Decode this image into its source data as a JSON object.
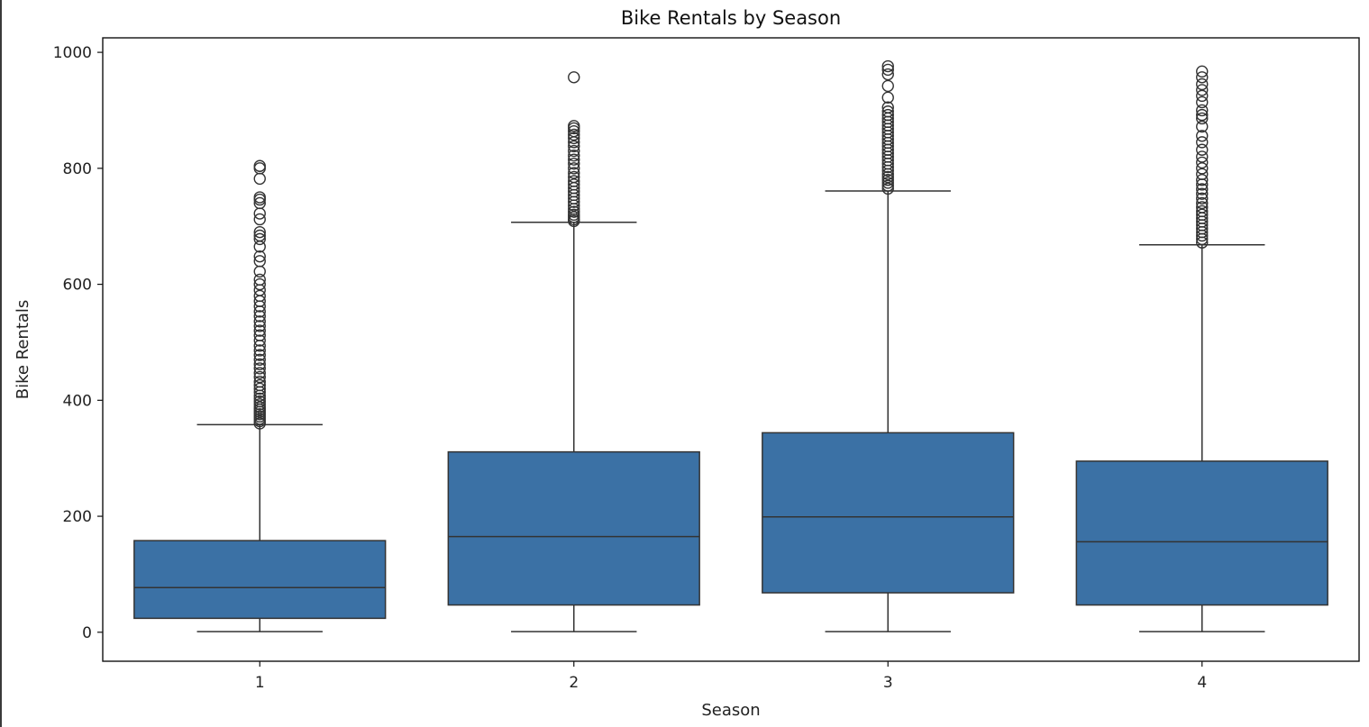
{
  "chart_data": {
    "type": "box",
    "title": "Bike Rentals by Season",
    "xlabel": "Season",
    "ylabel": "Bike Rentals",
    "categories": [
      "1",
      "2",
      "3",
      "4"
    ],
    "ylim": [
      -50,
      1025
    ],
    "yticks": [
      0,
      200,
      400,
      600,
      800,
      1000
    ],
    "grid": false,
    "box_color": "#3b71a5",
    "line_color": "#333333",
    "boxes": [
      {
        "category": "1",
        "whisker_low": 1,
        "q1": 24,
        "median": 77,
        "q3": 158,
        "whisker_high": 358,
        "outliers": [
          360,
          364,
          368,
          372,
          376,
          380,
          384,
          388,
          393,
          398,
          403,
          408,
          414,
          420,
          426,
          432,
          440,
          447,
          455,
          462,
          470,
          478,
          486,
          494,
          503,
          512,
          520,
          528,
          536,
          545,
          553,
          562,
          571,
          580,
          590,
          600,
          608,
          622,
          640,
          648,
          665,
          678,
          684,
          690,
          712,
          722,
          740,
          746,
          750,
          782,
          800,
          804
        ]
      },
      {
        "category": "2",
        "whisker_low": 1,
        "q1": 47,
        "median": 165,
        "q3": 311,
        "whisker_high": 707,
        "outliers": [
          709,
          712,
          716,
          720,
          725,
          730,
          736,
          742,
          748,
          754,
          760,
          766,
          772,
          778,
          785,
          792,
          800,
          808,
          815,
          822,
          830,
          838,
          845,
          852,
          858,
          864,
          869,
          873,
          957
        ]
      },
      {
        "category": "3",
        "whisker_low": 1,
        "q1": 68,
        "median": 199,
        "q3": 344,
        "whisker_high": 761,
        "outliers": [
          765,
          770,
          775,
          780,
          785,
          790,
          796,
          802,
          808,
          814,
          820,
          826,
          832,
          838,
          844,
          850,
          856,
          862,
          868,
          874,
          880,
          886,
          892,
          898,
          905,
          922,
          942,
          962,
          970,
          976
        ]
      },
      {
        "category": "4",
        "whisker_low": 1,
        "q1": 47,
        "median": 156,
        "q3": 295,
        "whisker_high": 668,
        "outliers": [
          672,
          678,
          684,
          690,
          696,
          702,
          708,
          714,
          720,
          726,
          733,
          740,
          748,
          756,
          764,
          772,
          780,
          790,
          800,
          810,
          820,
          832,
          845,
          856,
          872,
          886,
          892,
          900,
          914,
          925,
          935,
          945,
          957,
          967
        ]
      }
    ]
  }
}
